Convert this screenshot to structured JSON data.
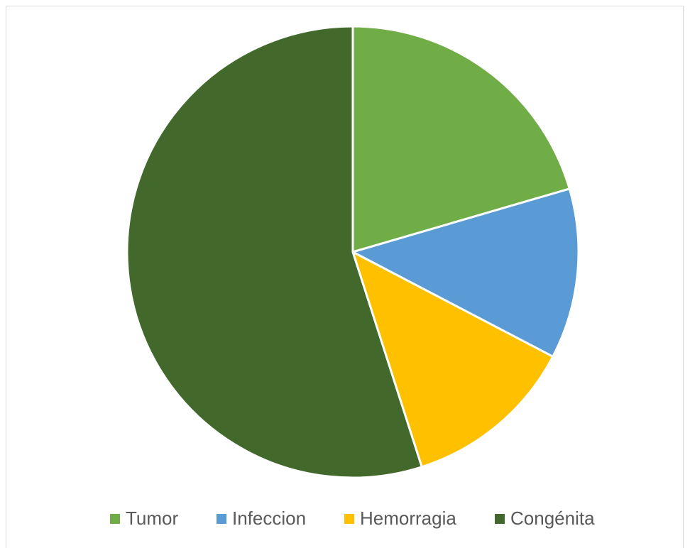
{
  "chart_data": {
    "type": "pie",
    "categories": [
      "Tumor",
      "Infeccion",
      "Hemorragia",
      "Congénita"
    ],
    "values": [
      20.5,
      12.2,
      12.4,
      55
    ],
    "colors": [
      "#70ad47",
      "#5b9bd5",
      "#ffc000",
      "#43682b"
    ],
    "legend": "bottom"
  }
}
